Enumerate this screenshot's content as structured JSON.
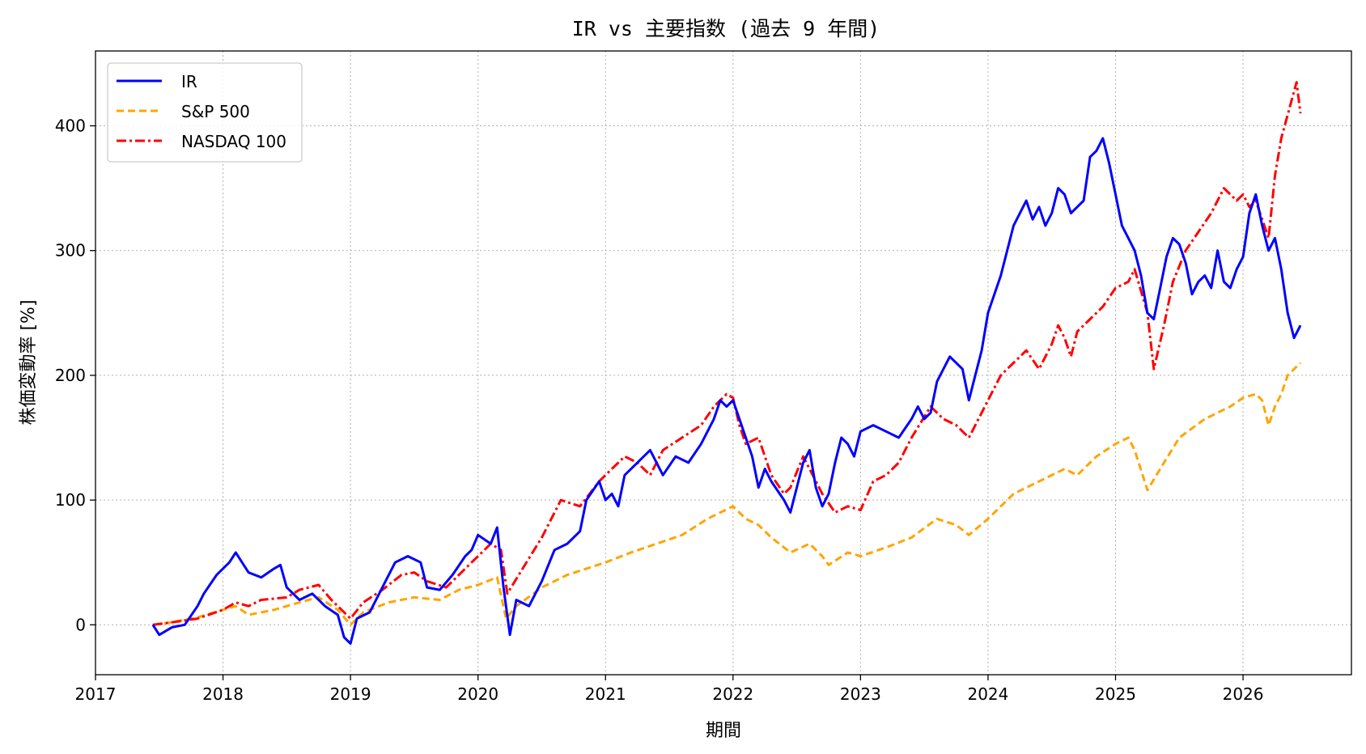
{
  "chart_data": {
    "type": "line",
    "title": "IR vs 主要指数 (過去 9 年間)",
    "xlabel": "期間",
    "ylabel": "株価変動率 [%]",
    "xlim": [
      2017.0,
      2026.85
    ],
    "ylim": [
      -40,
      460
    ],
    "x_ticks": [
      2017,
      2018,
      2019,
      2020,
      2021,
      2022,
      2023,
      2024,
      2025,
      2026
    ],
    "y_ticks": [
      0,
      100,
      200,
      300,
      400
    ],
    "grid": true,
    "legend_position": "top-left",
    "series": [
      {
        "name": "IR",
        "color": "#0000ff",
        "style": "solid",
        "points": [
          [
            2017.45,
            0
          ],
          [
            2017.5,
            -8
          ],
          [
            2017.6,
            -2
          ],
          [
            2017.7,
            0
          ],
          [
            2017.8,
            15
          ],
          [
            2017.85,
            25
          ],
          [
            2017.95,
            40
          ],
          [
            2018.05,
            50
          ],
          [
            2018.1,
            58
          ],
          [
            2018.2,
            42
          ],
          [
            2018.3,
            38
          ],
          [
            2018.4,
            45
          ],
          [
            2018.45,
            48
          ],
          [
            2018.5,
            30
          ],
          [
            2018.6,
            20
          ],
          [
            2018.7,
            25
          ],
          [
            2018.8,
            15
          ],
          [
            2018.9,
            8
          ],
          [
            2018.95,
            -10
          ],
          [
            2019.0,
            -15
          ],
          [
            2019.05,
            5
          ],
          [
            2019.15,
            10
          ],
          [
            2019.25,
            30
          ],
          [
            2019.35,
            50
          ],
          [
            2019.45,
            55
          ],
          [
            2019.55,
            50
          ],
          [
            2019.6,
            30
          ],
          [
            2019.7,
            28
          ],
          [
            2019.8,
            40
          ],
          [
            2019.9,
            55
          ],
          [
            2019.95,
            60
          ],
          [
            2020.0,
            72
          ],
          [
            2020.1,
            65
          ],
          [
            2020.15,
            78
          ],
          [
            2020.2,
            30
          ],
          [
            2020.25,
            -8
          ],
          [
            2020.3,
            20
          ],
          [
            2020.4,
            15
          ],
          [
            2020.5,
            35
          ],
          [
            2020.6,
            60
          ],
          [
            2020.7,
            65
          ],
          [
            2020.8,
            75
          ],
          [
            2020.85,
            100
          ],
          [
            2020.95,
            115
          ],
          [
            2021.0,
            100
          ],
          [
            2021.05,
            105
          ],
          [
            2021.1,
            95
          ],
          [
            2021.15,
            120
          ],
          [
            2021.25,
            130
          ],
          [
            2021.35,
            140
          ],
          [
            2021.45,
            120
          ],
          [
            2021.55,
            135
          ],
          [
            2021.65,
            130
          ],
          [
            2021.75,
            145
          ],
          [
            2021.85,
            165
          ],
          [
            2021.9,
            180
          ],
          [
            2021.95,
            175
          ],
          [
            2022.0,
            180
          ],
          [
            2022.05,
            165
          ],
          [
            2022.1,
            150
          ],
          [
            2022.15,
            135
          ],
          [
            2022.2,
            110
          ],
          [
            2022.25,
            125
          ],
          [
            2022.3,
            115
          ],
          [
            2022.4,
            100
          ],
          [
            2022.45,
            90
          ],
          [
            2022.5,
            110
          ],
          [
            2022.55,
            130
          ],
          [
            2022.6,
            140
          ],
          [
            2022.65,
            110
          ],
          [
            2022.7,
            95
          ],
          [
            2022.75,
            105
          ],
          [
            2022.8,
            130
          ],
          [
            2022.85,
            150
          ],
          [
            2022.9,
            145
          ],
          [
            2022.95,
            135
          ],
          [
            2023.0,
            155
          ],
          [
            2023.1,
            160
          ],
          [
            2023.2,
            155
          ],
          [
            2023.3,
            150
          ],
          [
            2023.4,
            165
          ],
          [
            2023.45,
            175
          ],
          [
            2023.5,
            165
          ],
          [
            2023.55,
            170
          ],
          [
            2023.6,
            195
          ],
          [
            2023.7,
            215
          ],
          [
            2023.8,
            205
          ],
          [
            2023.85,
            180
          ],
          [
            2023.9,
            200
          ],
          [
            2023.95,
            220
          ],
          [
            2024.0,
            250
          ],
          [
            2024.1,
            280
          ],
          [
            2024.15,
            300
          ],
          [
            2024.2,
            320
          ],
          [
            2024.3,
            340
          ],
          [
            2024.35,
            325
          ],
          [
            2024.4,
            335
          ],
          [
            2024.45,
            320
          ],
          [
            2024.5,
            330
          ],
          [
            2024.55,
            350
          ],
          [
            2024.6,
            345
          ],
          [
            2024.65,
            330
          ],
          [
            2024.7,
            335
          ],
          [
            2024.75,
            340
          ],
          [
            2024.8,
            375
          ],
          [
            2024.85,
            380
          ],
          [
            2024.9,
            390
          ],
          [
            2024.95,
            370
          ],
          [
            2025.0,
            345
          ],
          [
            2025.05,
            320
          ],
          [
            2025.1,
            310
          ],
          [
            2025.15,
            300
          ],
          [
            2025.2,
            280
          ],
          [
            2025.25,
            250
          ],
          [
            2025.3,
            245
          ],
          [
            2025.35,
            270
          ],
          [
            2025.4,
            295
          ],
          [
            2025.45,
            310
          ],
          [
            2025.5,
            305
          ],
          [
            2025.55,
            290
          ],
          [
            2025.6,
            265
          ],
          [
            2025.65,
            275
          ],
          [
            2025.7,
            280
          ],
          [
            2025.75,
            270
          ],
          [
            2025.8,
            300
          ],
          [
            2025.85,
            275
          ],
          [
            2025.9,
            270
          ],
          [
            2025.95,
            285
          ],
          [
            2026.0,
            295
          ],
          [
            2026.05,
            330
          ],
          [
            2026.1,
            345
          ],
          [
            2026.15,
            320
          ],
          [
            2026.2,
            300
          ],
          [
            2026.25,
            310
          ],
          [
            2026.3,
            285
          ],
          [
            2026.35,
            250
          ],
          [
            2026.4,
            230
          ],
          [
            2026.45,
            240
          ]
        ]
      },
      {
        "name": "S&P 500",
        "color": "#ffa500",
        "style": "dashed",
        "points": [
          [
            2017.45,
            0
          ],
          [
            2017.6,
            2
          ],
          [
            2017.8,
            6
          ],
          [
            2018.0,
            12
          ],
          [
            2018.1,
            15
          ],
          [
            2018.2,
            8
          ],
          [
            2018.4,
            12
          ],
          [
            2018.6,
            18
          ],
          [
            2018.75,
            22
          ],
          [
            2018.9,
            12
          ],
          [
            2019.0,
            0
          ],
          [
            2019.1,
            10
          ],
          [
            2019.3,
            18
          ],
          [
            2019.5,
            22
          ],
          [
            2019.7,
            20
          ],
          [
            2019.85,
            28
          ],
          [
            2020.0,
            32
          ],
          [
            2020.15,
            38
          ],
          [
            2020.22,
            5
          ],
          [
            2020.3,
            15
          ],
          [
            2020.5,
            30
          ],
          [
            2020.7,
            40
          ],
          [
            2020.85,
            45
          ],
          [
            2021.0,
            50
          ],
          [
            2021.2,
            58
          ],
          [
            2021.4,
            65
          ],
          [
            2021.6,
            72
          ],
          [
            2021.8,
            85
          ],
          [
            2022.0,
            95
          ],
          [
            2022.1,
            85
          ],
          [
            2022.2,
            80
          ],
          [
            2022.3,
            70
          ],
          [
            2022.45,
            58
          ],
          [
            2022.6,
            65
          ],
          [
            2022.7,
            55
          ],
          [
            2022.75,
            48
          ],
          [
            2022.9,
            58
          ],
          [
            2023.0,
            55
          ],
          [
            2023.2,
            62
          ],
          [
            2023.4,
            70
          ],
          [
            2023.6,
            85
          ],
          [
            2023.75,
            80
          ],
          [
            2023.85,
            72
          ],
          [
            2024.0,
            85
          ],
          [
            2024.2,
            105
          ],
          [
            2024.4,
            115
          ],
          [
            2024.6,
            125
          ],
          [
            2024.7,
            120
          ],
          [
            2024.85,
            135
          ],
          [
            2025.0,
            145
          ],
          [
            2025.1,
            150
          ],
          [
            2025.15,
            140
          ],
          [
            2025.25,
            108
          ],
          [
            2025.35,
            125
          ],
          [
            2025.5,
            150
          ],
          [
            2025.7,
            165
          ],
          [
            2025.9,
            175
          ],
          [
            2026.0,
            182
          ],
          [
            2026.1,
            185
          ],
          [
            2026.15,
            180
          ],
          [
            2026.2,
            160
          ],
          [
            2026.25,
            175
          ],
          [
            2026.3,
            185
          ],
          [
            2026.35,
            200
          ],
          [
            2026.45,
            210
          ]
        ]
      },
      {
        "name": "NASDAQ 100",
        "color": "#ff0000",
        "style": "dashdot",
        "points": [
          [
            2017.45,
            0
          ],
          [
            2017.6,
            2
          ],
          [
            2017.8,
            5
          ],
          [
            2018.0,
            12
          ],
          [
            2018.1,
            18
          ],
          [
            2018.2,
            15
          ],
          [
            2018.3,
            20
          ],
          [
            2018.5,
            22
          ],
          [
            2018.6,
            28
          ],
          [
            2018.75,
            32
          ],
          [
            2018.85,
            20
          ],
          [
            2019.0,
            5
          ],
          [
            2019.1,
            18
          ],
          [
            2019.25,
            28
          ],
          [
            2019.4,
            40
          ],
          [
            2019.5,
            42
          ],
          [
            2019.6,
            35
          ],
          [
            2019.75,
            30
          ],
          [
            2019.9,
            45
          ],
          [
            2020.0,
            55
          ],
          [
            2020.1,
            65
          ],
          [
            2020.18,
            60
          ],
          [
            2020.23,
            25
          ],
          [
            2020.35,
            45
          ],
          [
            2020.5,
            70
          ],
          [
            2020.65,
            100
          ],
          [
            2020.8,
            95
          ],
          [
            2020.95,
            115
          ],
          [
            2021.05,
            125
          ],
          [
            2021.15,
            135
          ],
          [
            2021.25,
            130
          ],
          [
            2021.35,
            120
          ],
          [
            2021.45,
            140
          ],
          [
            2021.6,
            150
          ],
          [
            2021.75,
            160
          ],
          [
            2021.85,
            175
          ],
          [
            2021.95,
            185
          ],
          [
            2022.0,
            182
          ],
          [
            2022.05,
            160
          ],
          [
            2022.1,
            145
          ],
          [
            2022.2,
            150
          ],
          [
            2022.3,
            120
          ],
          [
            2022.4,
            105
          ],
          [
            2022.45,
            110
          ],
          [
            2022.55,
            135
          ],
          [
            2022.6,
            125
          ],
          [
            2022.7,
            105
          ],
          [
            2022.8,
            90
          ],
          [
            2022.9,
            95
          ],
          [
            2023.0,
            92
          ],
          [
            2023.1,
            115
          ],
          [
            2023.2,
            120
          ],
          [
            2023.3,
            130
          ],
          [
            2023.4,
            150
          ],
          [
            2023.55,
            175
          ],
          [
            2023.65,
            165
          ],
          [
            2023.75,
            160
          ],
          [
            2023.85,
            150
          ],
          [
            2023.95,
            170
          ],
          [
            2024.0,
            180
          ],
          [
            2024.1,
            200
          ],
          [
            2024.2,
            210
          ],
          [
            2024.3,
            220
          ],
          [
            2024.4,
            205
          ],
          [
            2024.5,
            225
          ],
          [
            2024.55,
            240
          ],
          [
            2024.6,
            230
          ],
          [
            2024.65,
            215
          ],
          [
            2024.7,
            235
          ],
          [
            2024.8,
            245
          ],
          [
            2024.9,
            255
          ],
          [
            2025.0,
            270
          ],
          [
            2025.1,
            275
          ],
          [
            2025.15,
            285
          ],
          [
            2025.25,
            250
          ],
          [
            2025.3,
            205
          ],
          [
            2025.38,
            240
          ],
          [
            2025.45,
            275
          ],
          [
            2025.55,
            300
          ],
          [
            2025.65,
            315
          ],
          [
            2025.75,
            330
          ],
          [
            2025.85,
            350
          ],
          [
            2025.95,
            340
          ],
          [
            2026.0,
            345
          ],
          [
            2026.05,
            335
          ],
          [
            2026.1,
            340
          ],
          [
            2026.2,
            310
          ],
          [
            2026.25,
            360
          ],
          [
            2026.3,
            390
          ],
          [
            2026.38,
            420
          ],
          [
            2026.42,
            435
          ],
          [
            2026.45,
            410
          ]
        ]
      }
    ]
  }
}
